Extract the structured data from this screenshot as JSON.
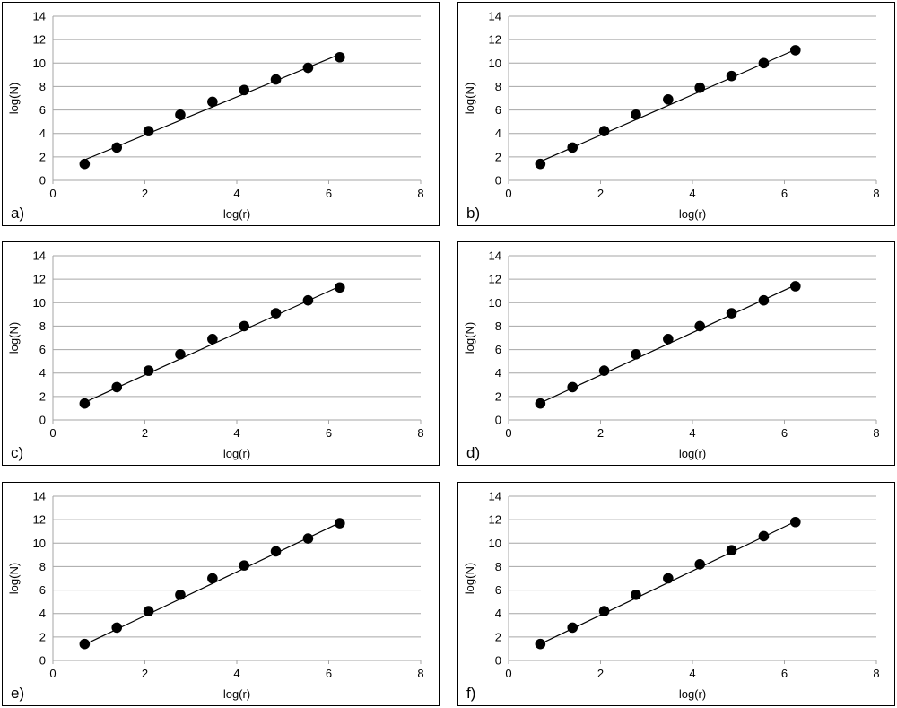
{
  "chart_data": [
    {
      "type": "scatter",
      "panel_label": "a)",
      "xlabel": "log(r)",
      "ylabel": "log(N)",
      "xlim": [
        0,
        8
      ],
      "ylim": [
        0,
        14
      ],
      "xticks": [
        0,
        2,
        4,
        6,
        8
      ],
      "yticks": [
        0,
        2,
        4,
        6,
        8,
        10,
        12,
        14
      ],
      "grid": "horizontal",
      "x": [
        0.69,
        1.39,
        2.08,
        2.77,
        3.47,
        4.16,
        4.85,
        5.55,
        6.24
      ],
      "y": [
        1.4,
        2.8,
        4.2,
        5.6,
        6.7,
        7.7,
        8.6,
        9.6,
        10.5
      ],
      "trendline": [
        [
          0.69,
          1.75
        ],
        [
          6.24,
          10.75
        ]
      ]
    },
    {
      "type": "scatter",
      "panel_label": "b)",
      "xlabel": "log(r)",
      "ylabel": "log(N)",
      "xlim": [
        0,
        8
      ],
      "ylim": [
        0,
        14
      ],
      "xticks": [
        0,
        2,
        4,
        6,
        8
      ],
      "yticks": [
        0,
        2,
        4,
        6,
        8,
        10,
        12,
        14
      ],
      "grid": "horizontal",
      "x": [
        0.69,
        1.39,
        2.08,
        2.77,
        3.47,
        4.16,
        4.85,
        5.55,
        6.24
      ],
      "y": [
        1.4,
        2.8,
        4.2,
        5.6,
        6.9,
        7.9,
        8.9,
        10.0,
        11.1
      ],
      "trendline": [
        [
          0.69,
          1.6
        ],
        [
          6.24,
          11.15
        ]
      ]
    },
    {
      "type": "scatter",
      "panel_label": "c)",
      "xlabel": "log(r)",
      "ylabel": "log(N)",
      "xlim": [
        0,
        8
      ],
      "ylim": [
        0,
        14
      ],
      "xticks": [
        0,
        2,
        4,
        6,
        8
      ],
      "yticks": [
        0,
        2,
        4,
        6,
        8,
        10,
        12,
        14
      ],
      "grid": "horizontal",
      "x": [
        0.69,
        1.39,
        2.08,
        2.77,
        3.47,
        4.16,
        4.85,
        5.55,
        6.24
      ],
      "y": [
        1.4,
        2.8,
        4.2,
        5.6,
        6.9,
        8.0,
        9.1,
        10.2,
        11.3
      ],
      "trendline": [
        [
          0.69,
          1.5
        ],
        [
          6.24,
          11.4
        ]
      ]
    },
    {
      "type": "scatter",
      "panel_label": "d)",
      "xlabel": "log(r)",
      "ylabel": "log(N)",
      "xlim": [
        0,
        8
      ],
      "ylim": [
        0,
        14
      ],
      "xticks": [
        0,
        2,
        4,
        6,
        8
      ],
      "yticks": [
        0,
        2,
        4,
        6,
        8,
        10,
        12,
        14
      ],
      "grid": "horizontal",
      "x": [
        0.69,
        1.39,
        2.08,
        2.77,
        3.47,
        4.16,
        4.85,
        5.55,
        6.24
      ],
      "y": [
        1.4,
        2.8,
        4.2,
        5.6,
        6.9,
        8.0,
        9.1,
        10.2,
        11.4
      ],
      "trendline": [
        [
          0.69,
          1.45
        ],
        [
          6.24,
          11.5
        ]
      ]
    },
    {
      "type": "scatter",
      "panel_label": "e)",
      "xlabel": "log(r)",
      "ylabel": "log(N)",
      "xlim": [
        0,
        8
      ],
      "ylim": [
        0,
        14
      ],
      "xticks": [
        0,
        2,
        4,
        6,
        8
      ],
      "yticks": [
        0,
        2,
        4,
        6,
        8,
        10,
        12,
        14
      ],
      "grid": "horizontal",
      "x": [
        0.69,
        1.39,
        2.08,
        2.77,
        3.47,
        4.16,
        4.85,
        5.55,
        6.24
      ],
      "y": [
        1.4,
        2.8,
        4.2,
        5.6,
        7.0,
        8.1,
        9.3,
        10.4,
        11.7
      ],
      "trendline": [
        [
          0.69,
          1.35
        ],
        [
          6.24,
          11.75
        ]
      ]
    },
    {
      "type": "scatter",
      "panel_label": "f)",
      "xlabel": "log(r)",
      "ylabel": "log(N)",
      "xlim": [
        0,
        8
      ],
      "ylim": [
        0,
        14
      ],
      "xticks": [
        0,
        2,
        4,
        6,
        8
      ],
      "yticks": [
        0,
        2,
        4,
        6,
        8,
        10,
        12,
        14
      ],
      "grid": "horizontal",
      "x": [
        0.69,
        1.39,
        2.08,
        2.77,
        3.47,
        4.16,
        4.85,
        5.55,
        6.24
      ],
      "y": [
        1.4,
        2.8,
        4.2,
        5.6,
        7.0,
        8.2,
        9.4,
        10.6,
        11.8
      ],
      "trendline": [
        [
          0.69,
          1.4
        ],
        [
          6.24,
          11.85
        ]
      ]
    }
  ]
}
